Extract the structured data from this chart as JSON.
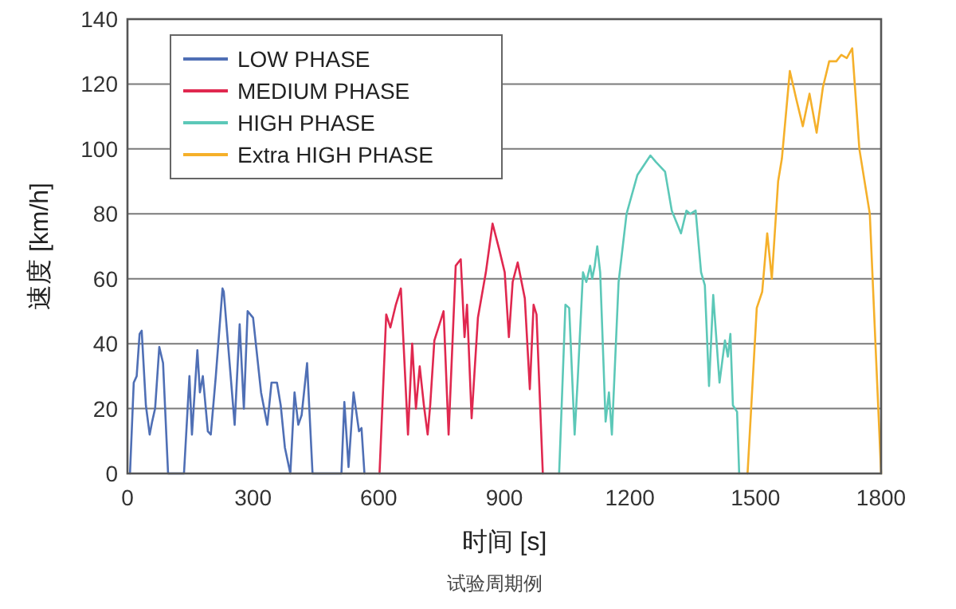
{
  "chart_data": {
    "type": "line",
    "xlabel": "时间 [s]",
    "ylabel": "速度 [km/h]",
    "annotations": [
      "试验周期例"
    ],
    "xlim": [
      0,
      1800
    ],
    "ylim": [
      0,
      140
    ],
    "xticks": [
      0,
      300,
      600,
      900,
      1200,
      1500,
      1800
    ],
    "yticks": [
      0,
      20,
      40,
      60,
      80,
      100,
      120,
      140
    ],
    "grid": "y",
    "legend": "top left",
    "marker": "none",
    "line_style": "solid",
    "series": [
      {
        "name": "LOW PHASE",
        "color": "#4f6fb5",
        "x": [
          6,
          15,
          22,
          29,
          34,
          44,
          53,
          59,
          66,
          76,
          85,
          97,
          135,
          148,
          154,
          167,
          173,
          180,
          192,
          199,
          211,
          227,
          230,
          256,
          268,
          278,
          287,
          300,
          319,
          334,
          344,
          357,
          366,
          376,
          389,
          399,
          408,
          416,
          429,
          442,
          511,
          518,
          528,
          540,
          553,
          559,
          566
        ],
        "values": [
          0,
          28,
          30,
          43,
          44,
          21,
          12,
          16,
          20,
          39,
          34,
          0,
          0,
          30,
          12,
          38,
          25,
          30,
          13,
          12,
          30,
          57,
          56,
          15,
          46,
          20,
          50,
          48,
          25,
          15,
          28,
          28,
          21,
          8,
          0,
          25,
          15,
          18,
          34,
          0,
          0,
          22,
          2,
          25,
          13,
          14,
          0
        ]
      },
      {
        "name": "MEDIUM PHASE",
        "color": "#e0284f",
        "x": [
          602,
          618,
          628,
          641,
          653,
          670,
          680,
          689,
          698,
          708,
          717,
          723,
          733,
          755,
          767,
          784,
          796,
          805,
          811,
          822,
          837,
          856,
          872,
          888,
          901,
          911,
          920,
          932,
          949,
          961,
          970,
          977,
          992
        ],
        "values": [
          0,
          49,
          45,
          52,
          57,
          12,
          40,
          20,
          33,
          21,
          12,
          21,
          41,
          50,
          12,
          64,
          66,
          42,
          52,
          17,
          48,
          62,
          77,
          69,
          62,
          42,
          59,
          65,
          54,
          26,
          52,
          49,
          0
        ]
      },
      {
        "name": "HIGH PHASE",
        "color": "#5cc8b8",
        "x": [
          1031,
          1046,
          1055,
          1068,
          1075,
          1088,
          1096,
          1105,
          1110,
          1116,
          1122,
          1129,
          1142,
          1150,
          1157,
          1173,
          1192,
          1218,
          1249,
          1262,
          1284,
          1300,
          1322,
          1335,
          1344,
          1357,
          1370,
          1379,
          1389,
          1399,
          1414,
          1427,
          1434,
          1440,
          1446,
          1456,
          1461
        ],
        "values": [
          0,
          52,
          51,
          12,
          28,
          62,
          59,
          64,
          60,
          64,
          70,
          62,
          16,
          25,
          12,
          59,
          80,
          92,
          98,
          96,
          93,
          81,
          74,
          81,
          80,
          81,
          62,
          58,
          27,
          55,
          28,
          41,
          36,
          43,
          21,
          19,
          0
        ]
      },
      {
        "name": "Extra HIGH PHASE",
        "color": "#f5b02a",
        "x": [
          1481,
          1503,
          1516,
          1528,
          1539,
          1554,
          1563,
          1582,
          1598,
          1613,
          1629,
          1646,
          1661,
          1676,
          1693,
          1705,
          1718,
          1731,
          1748,
          1773,
          1800
        ],
        "values": [
          0,
          51,
          56,
          74,
          60,
          90,
          97,
          124,
          115,
          107,
          117,
          105,
          119,
          127,
          127,
          129,
          128,
          131,
          100,
          80,
          0
        ]
      }
    ]
  }
}
